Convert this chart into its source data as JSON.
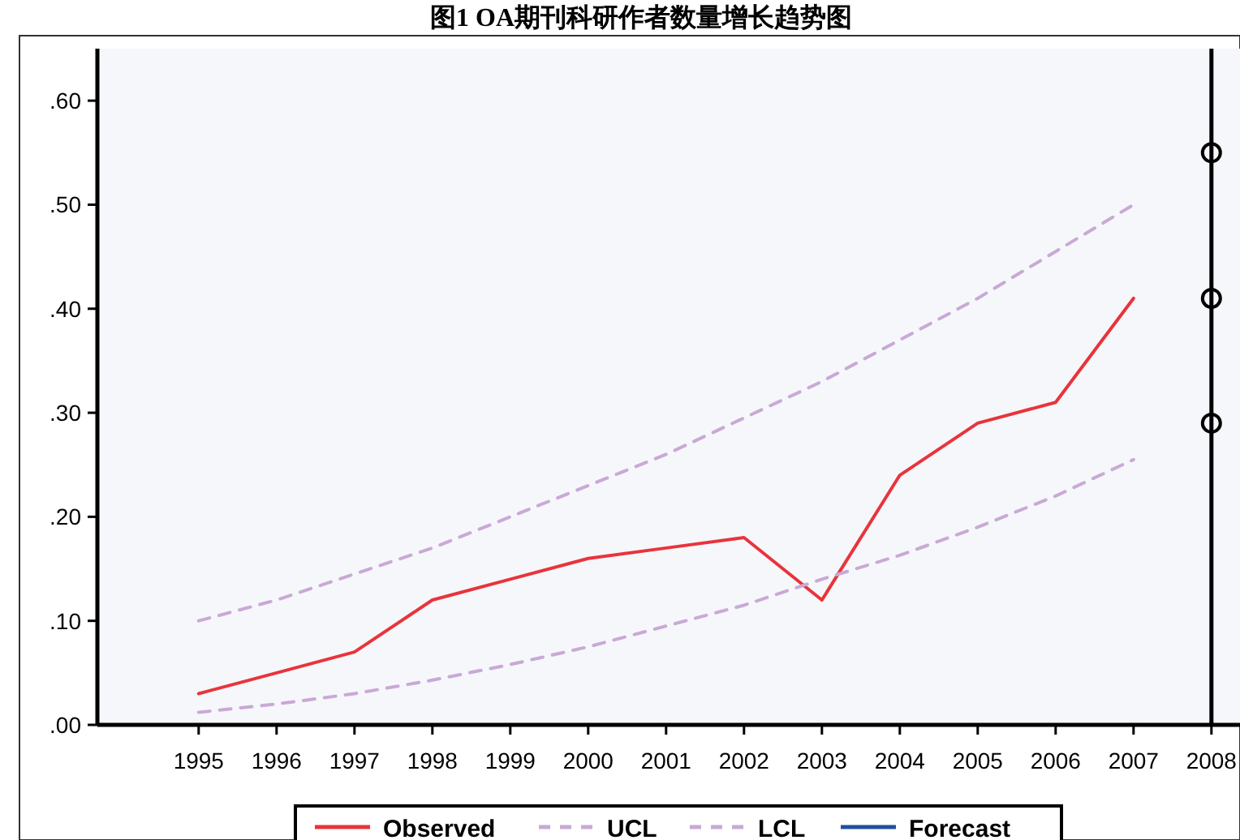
{
  "chart_data": {
    "type": "line",
    "title": "图1 OA期刊科研作者数量增长趋势图",
    "categories": [
      "1995",
      "1996",
      "1997",
      "1998",
      "1999",
      "2000",
      "2001",
      "2002",
      "2003",
      "2004",
      "2005",
      "2006",
      "2007",
      "2008"
    ],
    "ylim": [
      0,
      0.65
    ],
    "yticks": [
      {
        "value": 0,
        "label": ".00"
      },
      {
        "value": 0.1,
        "label": ".10"
      },
      {
        "value": 0.2,
        "label": ".20"
      },
      {
        "value": 0.3,
        "label": ".30"
      },
      {
        "value": 0.4,
        "label": ".40"
      },
      {
        "value": 0.5,
        "label": ".50"
      },
      {
        "value": 0.6,
        "label": ".60"
      }
    ],
    "grid": false,
    "legend": "bottom",
    "marker": "none",
    "ref_lines": [
      {
        "axis": "x",
        "value": "2008",
        "color": "#000000"
      }
    ],
    "series": [
      {
        "name": "Observed",
        "color": "#e8343c",
        "line_style": "solid",
        "values": [
          0.03,
          0.05,
          0.07,
          0.12,
          0.14,
          0.16,
          0.17,
          0.18,
          0.12,
          0.24,
          0.29,
          0.31,
          0.41,
          null
        ]
      },
      {
        "name": "UCL",
        "color": "#c9a9d6",
        "line_style": "dashed",
        "values": [
          0.1,
          0.12,
          0.145,
          0.17,
          0.2,
          0.23,
          0.26,
          0.295,
          0.33,
          0.37,
          0.41,
          0.455,
          0.5,
          null
        ]
      },
      {
        "name": "LCL",
        "color": "#c9a9d6",
        "line_style": "dashed",
        "values": [
          0.012,
          0.02,
          0.03,
          0.043,
          0.058,
          0.075,
          0.095,
          0.115,
          0.14,
          0.163,
          0.19,
          0.22,
          0.255,
          null
        ]
      },
      {
        "name": "Forecast",
        "color": "#2050a0",
        "line_style": "solid",
        "values": [
          null,
          null,
          null,
          null,
          null,
          null,
          null,
          null,
          null,
          null,
          null,
          null,
          null,
          null
        ]
      },
      {
        "type": "scatter",
        "color": "#000000",
        "marker": "circle",
        "values": [
          null,
          null,
          null,
          null,
          null,
          null,
          null,
          null,
          null,
          null,
          null,
          null,
          null,
          0.55
        ]
      },
      {
        "type": "scatter",
        "color": "#000000",
        "marker": "circle",
        "values": [
          null,
          null,
          null,
          null,
          null,
          null,
          null,
          null,
          null,
          null,
          null,
          null,
          null,
          0.41
        ]
      },
      {
        "type": "scatter",
        "color": "#000000",
        "marker": "circle",
        "values": [
          null,
          null,
          null,
          null,
          null,
          null,
          null,
          null,
          null,
          null,
          null,
          null,
          null,
          0.29
        ]
      }
    ]
  }
}
